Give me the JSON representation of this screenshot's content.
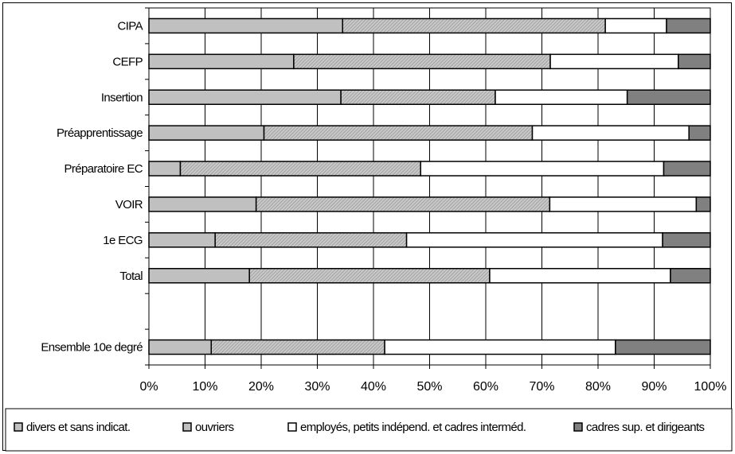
{
  "chart_data": {
    "type": "bar",
    "orientation": "horizontal",
    "stacked": "percent",
    "categories": [
      "CIPA",
      "CEFP",
      "Insertion",
      "Préapprentissage",
      "Préparatoire EC",
      "VOIR",
      "1e ECG",
      "Total",
      "",
      "Ensemble 10e degré"
    ],
    "series": [
      {
        "name": "divers et sans indicat.",
        "color": "#c0c0c0",
        "pattern": "solid",
        "values": [
          34.5,
          25.8,
          34.2,
          20.5,
          5.6,
          19.1,
          11.8,
          17.9,
          null,
          11.1
        ]
      },
      {
        "name": "ouvriers",
        "color": "#c0c0c0",
        "pattern": "diagonal-hatch",
        "values": [
          46.8,
          45.7,
          27.5,
          47.8,
          42.8,
          52.3,
          34.1,
          42.8,
          null,
          30.9
        ]
      },
      {
        "name": "employés, petits indépend. et cadres interméd.",
        "color": "#ffffff",
        "pattern": "solid",
        "values": [
          10.9,
          22.8,
          23.5,
          27.9,
          43.3,
          26.1,
          45.6,
          32.2,
          null,
          41.1
        ]
      },
      {
        "name": "cadres sup. et dirigeants",
        "color": "#808080",
        "pattern": "solid",
        "values": [
          7.8,
          5.7,
          14.8,
          3.8,
          8.3,
          2.5,
          8.5,
          7.1,
          null,
          16.9
        ]
      }
    ],
    "xlim": [
      0,
      100
    ],
    "x_ticks": [
      "0%",
      "10%",
      "20%",
      "30%",
      "40%",
      "50%",
      "60%",
      "70%",
      "80%",
      "90%",
      "100%"
    ],
    "grid": "vertical",
    "legend": "bottom"
  }
}
